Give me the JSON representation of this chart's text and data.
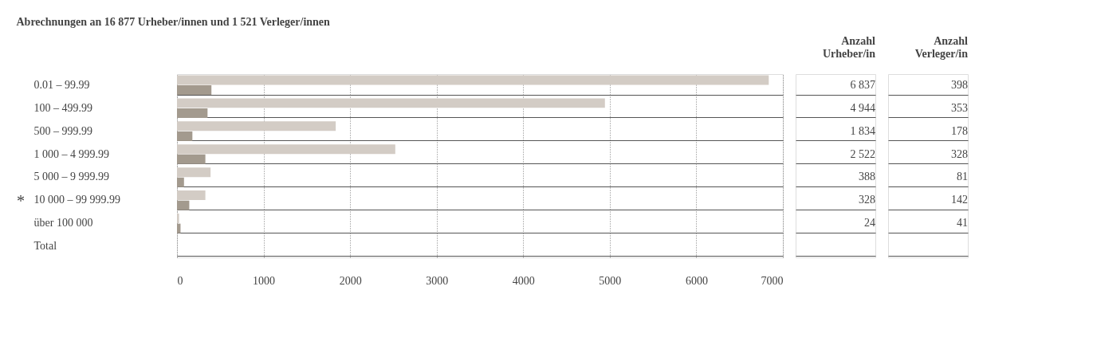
{
  "chart_data": {
    "type": "bar",
    "orientation": "horizontal",
    "title": "Abrechnungen an 16 877 Urheber/innen und 1 521 Verleger/innen",
    "categories": [
      "0.01 – 99.99",
      "100 – 499.99",
      "500 – 999.99",
      "1 000 – 4 999.99",
      "5 000 – 9 999.99",
      "10 000 – 99 999.99",
      "über 100 000",
      "Total"
    ],
    "series": [
      {
        "color": "#d3ccc5",
        "values": [
          6837,
          4944,
          1834,
          2522,
          388,
          328,
          24,
          null
        ],
        "value_labels": [
          "6 837",
          "4 944",
          "1 834",
          "2 522",
          "388",
          "328",
          "24",
          null
        ]
      },
      {
        "color": "#a39a8e",
        "values": [
          398,
          353,
          178,
          328,
          81,
          142,
          41,
          null
        ],
        "value_labels": [
          "398",
          "353",
          "178",
          "328",
          "81",
          "142",
          "41",
          null
        ]
      }
    ],
    "xlim": [
      0,
      7000
    ],
    "xticks": [
      0,
      1000,
      2000,
      3000,
      4000,
      5000,
      6000,
      7000
    ],
    "grid": "x",
    "legend": false,
    "annotations": [
      "Anzahl Urheber/in",
      "Anzahl Verleger/in",
      "*"
    ]
  }
}
